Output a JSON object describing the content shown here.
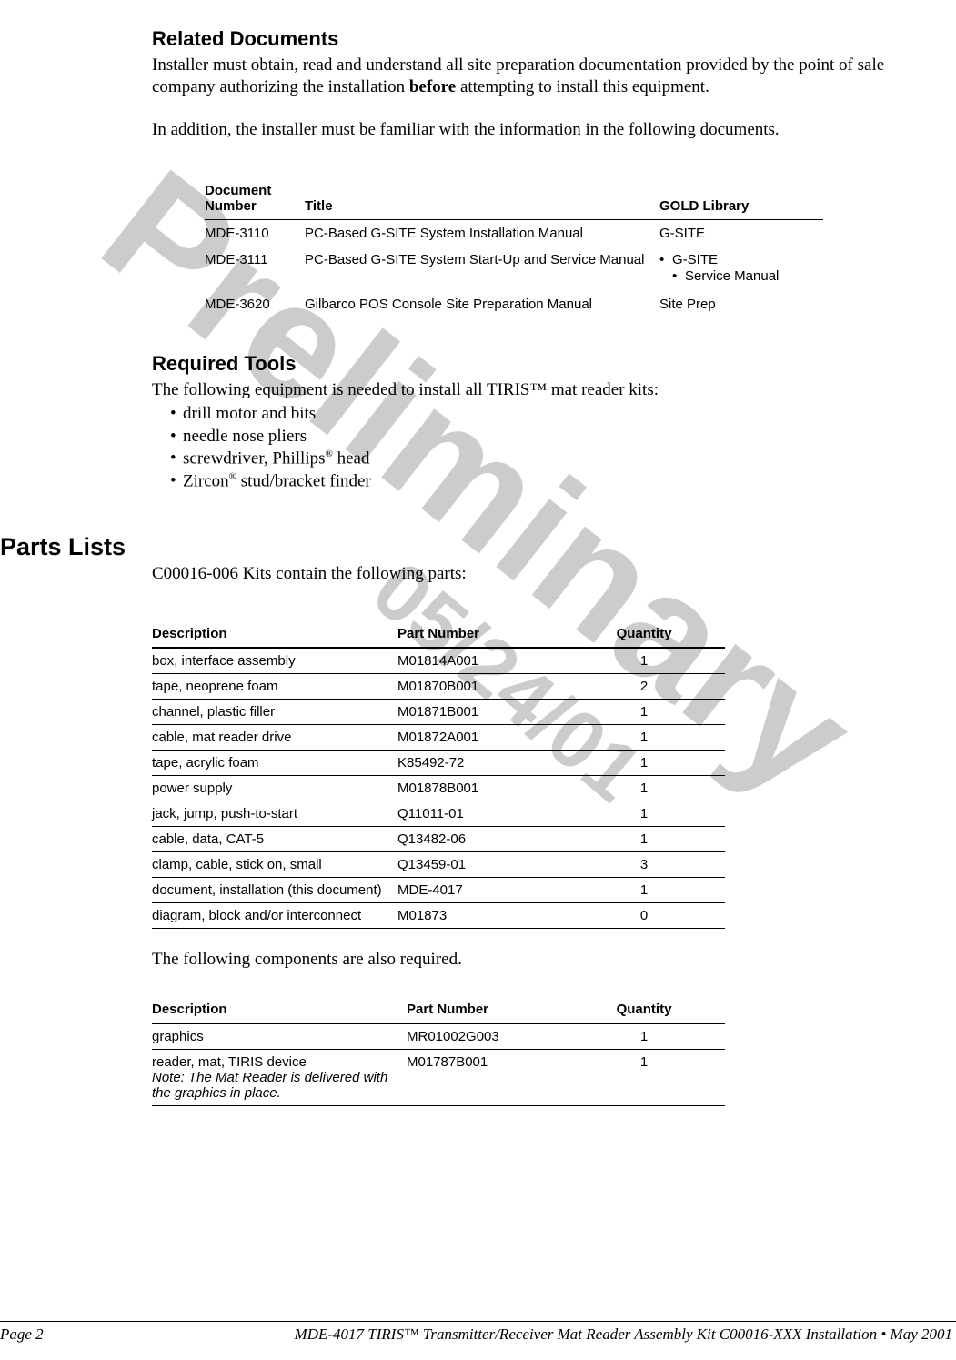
{
  "watermarks": {
    "w1": "Preliminary",
    "w2": "05/24/01"
  },
  "sections": {
    "related_docs": {
      "heading": "Related Documents",
      "p1_a": "Installer must obtain, read and understand all site preparation documentation provided by the point of sale company authorizing the installation ",
      "p1_bold": "before",
      "p1_b": " attempting to install this equipment.",
      "p2": "In addition, the installer must be familiar with the information in the following documents."
    },
    "required_tools": {
      "heading": "Required Tools",
      "intro": "The following equipment is needed to install all TIRIS™ mat reader kits:",
      "items": [
        "drill motor and bits",
        "needle nose pliers",
        "screwdriver, Phillips head",
        "Zircon stud/bracket finder"
      ],
      "item3_a": "screwdriver, Phillips",
      "item3_b": " head",
      "item4_a": "Zircon",
      "item4_b": " stud/bracket finder",
      "reg": "®"
    },
    "parts_lists": {
      "heading": "Parts Lists",
      "intro": "C00016-006 Kits contain the following parts:",
      "also": "The following components are also required."
    }
  },
  "docs_table": {
    "headers": {
      "num": "Document Number",
      "title": "Title",
      "lib": "GOLD Library"
    },
    "rows": [
      {
        "num": "MDE-3110",
        "title": "PC-Based G-SITE System Installation Manual",
        "lib_plain": "G-SITE"
      },
      {
        "num": "MDE-3111",
        "title": "PC-Based G-SITE System Start-Up and Service Manual",
        "lib_bullets": [
          "G-SITE",
          "Service Manual"
        ]
      },
      {
        "num": "MDE-3620",
        "title": "Gilbarco POS Console Site Preparation Manual",
        "lib_plain": "Site Prep"
      }
    ]
  },
  "parts_table": {
    "headers": {
      "desc": "Description",
      "pn": "Part Number",
      "qty": "Quantity"
    },
    "rows": [
      {
        "desc": "box, interface assembly",
        "pn": "M01814A001",
        "qty": "1"
      },
      {
        "desc": "tape, neoprene foam",
        "pn": "M01870B001",
        "qty": "2"
      },
      {
        "desc": "channel, plastic filler",
        "pn": "M01871B001",
        "qty": "1"
      },
      {
        "desc": "cable, mat reader drive",
        "pn": "M01872A001",
        "qty": "1"
      },
      {
        "desc": "tape, acrylic foam",
        "pn": "K85492-72",
        "qty": "1"
      },
      {
        "desc": "power supply",
        "pn": "M01878B001",
        "qty": "1"
      },
      {
        "desc": "jack, jump, push-to-start",
        "pn": "Q11011-01",
        "qty": "1"
      },
      {
        "desc": "cable, data, CAT-5",
        "pn": "Q13482-06",
        "qty": "1"
      },
      {
        "desc": "clamp, cable, stick on, small",
        "pn": "Q13459-01",
        "qty": "3"
      },
      {
        "desc": "document, installation (this document)",
        "pn": "MDE-4017",
        "qty": "1"
      },
      {
        "desc": "diagram, block and/or interconnect",
        "pn": "M01873",
        "qty": "0"
      }
    ]
  },
  "also_table": {
    "headers": {
      "desc": "Description",
      "pn": "Part Number",
      "qty": "Quantity"
    },
    "rows": [
      {
        "desc": "graphics",
        "pn": "MR01002G003",
        "qty": "1"
      },
      {
        "desc_main": "reader, mat, TIRIS device",
        "desc_note": "Note: The Mat Reader is delivered with the graphics in place.",
        "pn": "M01787B001",
        "qty": "1"
      }
    ]
  },
  "footer": {
    "left": "Page 2",
    "right": "MDE-4017 TIRIS™ Transmitter/Receiver Mat Reader Assembly Kit C00016-XXX Installation • May 2001"
  }
}
